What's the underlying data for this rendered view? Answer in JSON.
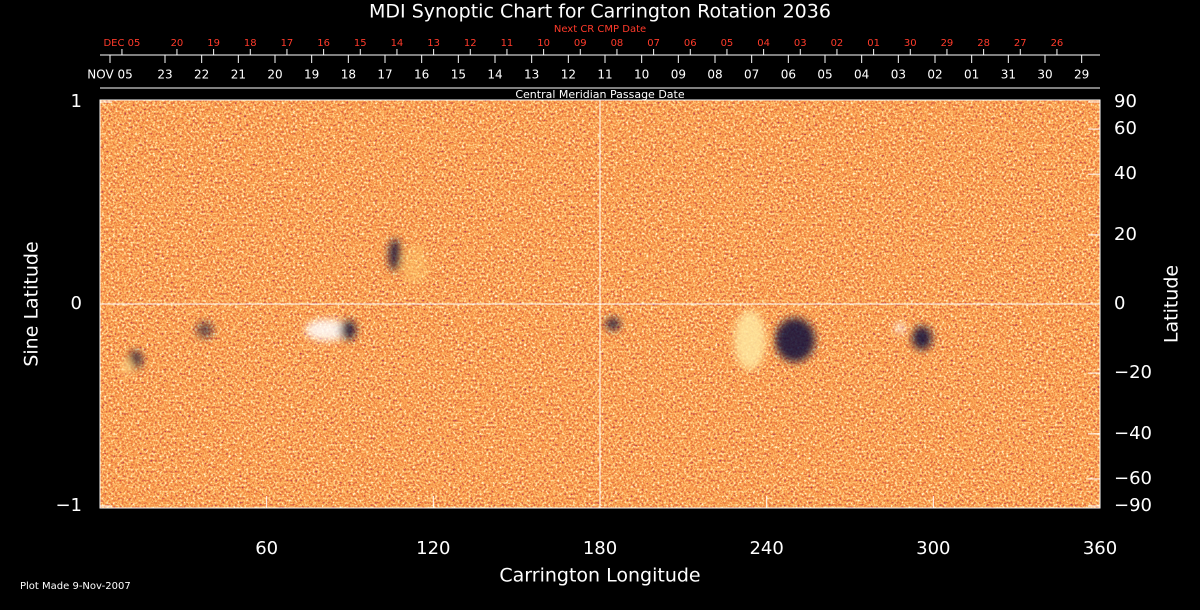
{
  "chart_data": {
    "type": "synoptic",
    "title": "MDI Synoptic Chart for Carrington Rotation 2036",
    "top_axis_title": "Next CR CMP Date",
    "date_axis_title": "Central Meridian Passage Date",
    "xlabel": "Carrington Longitude",
    "ylabel": "Sine Latitude",
    "y2label": "Latitude",
    "footer": "Plot Made  9-Nov-2007",
    "xlim": [
      0,
      360
    ],
    "ylim": [
      -1,
      1
    ],
    "xticks": [
      60,
      120,
      180,
      240,
      300,
      360
    ],
    "yticks": [
      1,
      0,
      {
        "value": -1,
        "label": "−1"
      }
    ],
    "y2ticks": [
      90,
      60,
      40,
      20,
      0,
      {
        "value": -20,
        "label": "−20"
      },
      {
        "value": -40,
        "label": "−40"
      },
      {
        "value": -60,
        "label": "−60"
      },
      {
        "value": -90,
        "label": "−90"
      }
    ],
    "crosshair": [
      180,
      0
    ],
    "next_cr_dates": [
      {
        "value": 7.9,
        "label": "DEC 05"
      },
      {
        "value": 27.7,
        "label": "20"
      },
      {
        "value": 40.9,
        "label": "19"
      },
      {
        "value": 54.1,
        "label": "18"
      },
      {
        "value": 67.3,
        "label": "17"
      },
      {
        "value": 80.5,
        "label": "16"
      },
      {
        "value": 93.7,
        "label": "15"
      },
      {
        "value": 106.9,
        "label": "14"
      },
      {
        "value": 120.1,
        "label": "13"
      },
      {
        "value": 133.3,
        "label": "12"
      },
      {
        "value": 146.5,
        "label": "11"
      },
      {
        "value": 159.7,
        "label": "10"
      },
      {
        "value": 172.9,
        "label": "09"
      },
      {
        "value": 186.1,
        "label": "08"
      },
      {
        "value": 199.3,
        "label": "07"
      },
      {
        "value": 212.5,
        "label": "06"
      },
      {
        "value": 225.7,
        "label": "05"
      },
      {
        "value": 238.9,
        "label": "04"
      },
      {
        "value": 252.1,
        "label": "03"
      },
      {
        "value": 265.3,
        "label": "02"
      },
      {
        "value": 278.5,
        "label": "01"
      },
      {
        "value": 291.7,
        "label": "30"
      },
      {
        "value": 304.9,
        "label": "29"
      },
      {
        "value": 318.1,
        "label": "28"
      },
      {
        "value": 331.3,
        "label": "27"
      },
      {
        "value": 344.5,
        "label": "26"
      }
    ],
    "cmp_dates": [
      {
        "value": 3.6,
        "label": "NOV 05"
      },
      {
        "value": 23.4,
        "label": "23"
      },
      {
        "value": 36.6,
        "label": "22"
      },
      {
        "value": 49.8,
        "label": "21"
      },
      {
        "value": 63.0,
        "label": "20"
      },
      {
        "value": 76.2,
        "label": "19"
      },
      {
        "value": 89.4,
        "label": "18"
      },
      {
        "value": 102.6,
        "label": "17"
      },
      {
        "value": 115.8,
        "label": "16"
      },
      {
        "value": 129.0,
        "label": "15"
      },
      {
        "value": 142.2,
        "label": "14"
      },
      {
        "value": 155.4,
        "label": "13"
      },
      {
        "value": 168.6,
        "label": "12"
      },
      {
        "value": 181.8,
        "label": "11"
      },
      {
        "value": 195.0,
        "label": "10"
      },
      {
        "value": 208.2,
        "label": "09"
      },
      {
        "value": 221.4,
        "label": "08"
      },
      {
        "value": 234.6,
        "label": "07"
      },
      {
        "value": 247.8,
        "label": "06"
      },
      {
        "value": 261.0,
        "label": "05"
      },
      {
        "value": 274.2,
        "label": "04"
      },
      {
        "value": 287.4,
        "label": "03"
      },
      {
        "value": 300.6,
        "label": "02"
      },
      {
        "value": 313.8,
        "label": "01"
      },
      {
        "value": 327.0,
        "label": "31"
      },
      {
        "value": 340.2,
        "label": "30"
      },
      {
        "value": 353.4,
        "label": "29"
      }
    ]
  }
}
